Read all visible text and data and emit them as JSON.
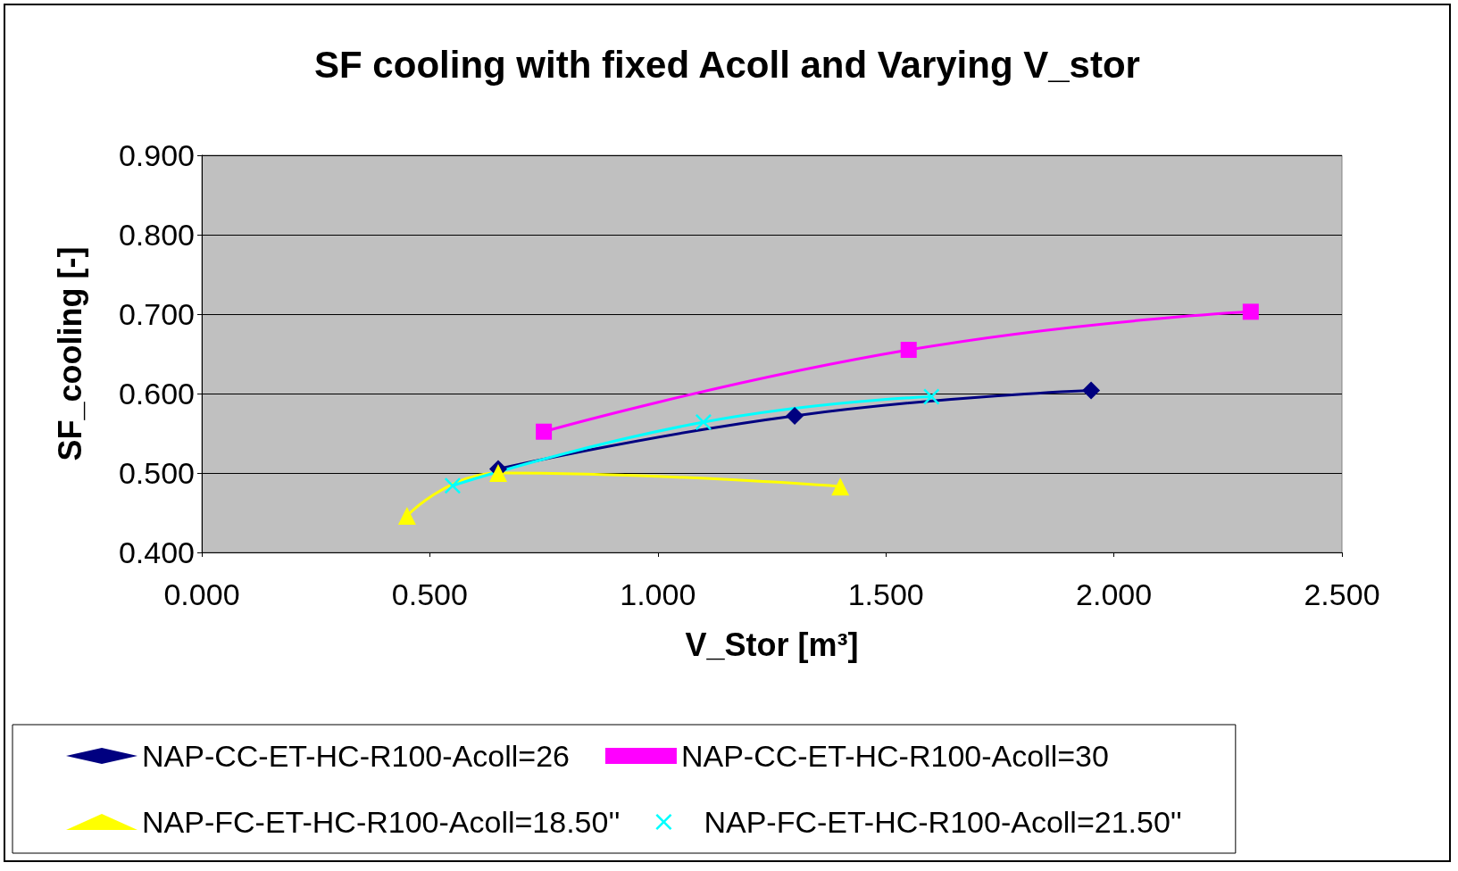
{
  "chart_data": {
    "type": "line",
    "title": "SF cooling with fixed Acoll and Varying V_stor",
    "xlabel": "V_Stor [m³]",
    "ylabel": "SF_cooling [-]",
    "xlim": [
      0,
      2.5
    ],
    "xticks": [
      {
        "value": 0,
        "label": "0.000"
      },
      {
        "value": 0.5,
        "label": "0.500"
      },
      {
        "value": 1,
        "label": "1.000"
      },
      {
        "value": 1.5,
        "label": "1.500"
      },
      {
        "value": 2,
        "label": "2.000"
      },
      {
        "value": 2.5,
        "label": "2.500"
      }
    ],
    "ylim": [
      0.4,
      0.9
    ],
    "yticks": [
      {
        "value": 0.4,
        "label": "0.400"
      },
      {
        "value": 0.5,
        "label": "0.500"
      },
      {
        "value": 0.6,
        "label": "0.600"
      },
      {
        "value": 0.7,
        "label": "0.700"
      },
      {
        "value": 0.8,
        "label": "0.800"
      },
      {
        "value": 0.9,
        "label": "0.900"
      }
    ],
    "grid": "y",
    "legend": "bottom",
    "line_style": "solid",
    "series": [
      {
        "name": "NAP-CC-ET-HC-R100-Acoll=26",
        "color": "#000080",
        "marker": "diamond",
        "x": [
          0.65,
          1.3,
          1.95
        ],
        "values": [
          0.505,
          0.572,
          0.604
        ]
      },
      {
        "name": "NAP-CC-ET-HC-R100-Acoll=30",
        "color": "#ff00ff",
        "marker": "square",
        "x": [
          0.75,
          1.55,
          2.3
        ],
        "values": [
          0.552,
          0.655,
          0.703
        ]
      },
      {
        "name": "NAP-FC-ET-HC-R100-Acoll=18.50''",
        "color": "#ffff00",
        "marker": "triangle",
        "x": [
          0.45,
          0.65,
          1.4
        ],
        "values": [
          0.446,
          0.5,
          0.483
        ]
      },
      {
        "name": "NAP-FC-ET-HC-R100-Acoll=21.50''",
        "color": "#00ffff",
        "marker": "cross",
        "x": [
          0.55,
          1.1,
          1.6
        ],
        "values": [
          0.484,
          0.564,
          0.596
        ]
      }
    ]
  }
}
